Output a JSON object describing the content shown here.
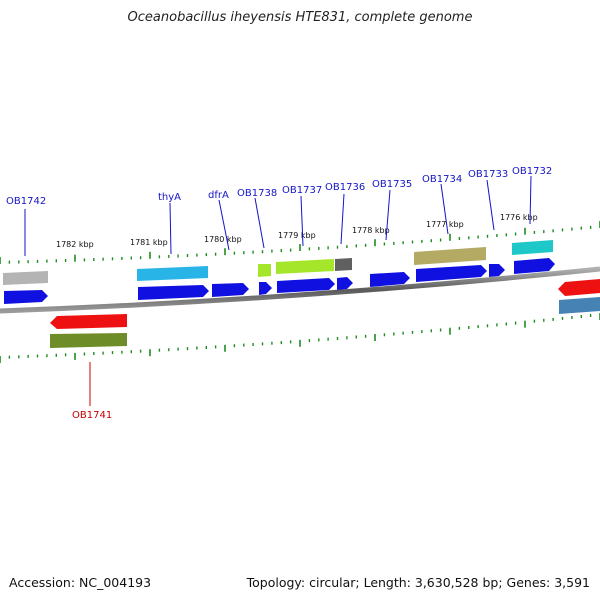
{
  "title": "Oceanobacillus iheyensis HTE831, complete genome",
  "footer": {
    "accession": "Accession: NC_004193",
    "stats": "Topology: circular; Length: 3,630,528 bp; Genes: 3,591"
  },
  "scale_labels": [
    "1782 kbp",
    "1781 kbp",
    "1780 kbp",
    "1779 kbp",
    "1778 kbp",
    "1777 kbp",
    "1776 kbp"
  ],
  "gene_labels": [
    "OB1742",
    "thyA",
    "dfrA",
    "OB1738",
    "OB1737",
    "OB1736",
    "OB1735",
    "OB1734",
    "OB1733",
    "OB1732",
    "OB1741"
  ],
  "colors": {
    "backbone": "#8a8a8a",
    "cds": "#1010e0",
    "highlight_cds": "#ee1111",
    "gene_label": "#1414c8",
    "highlight_label": "#c80000",
    "tick": "#1e8c1e"
  },
  "features": [
    {
      "name": "grey-feature",
      "color": "#b4b4b4"
    },
    {
      "name": "cyan-feature",
      "color": "#28b4e6"
    },
    {
      "name": "lime-feature",
      "color": "#a6e62a"
    },
    {
      "name": "lime-feature-2",
      "color": "#a6e62a"
    },
    {
      "name": "darkgrey-feature",
      "color": "#606060"
    },
    {
      "name": "olive-feature",
      "color": "#b4aa64"
    },
    {
      "name": "teal-feature",
      "color": "#1ec8c8"
    },
    {
      "name": "olive-green-feature",
      "color": "#6e8c28"
    },
    {
      "name": "steelblue-feature",
      "color": "#4682b4"
    }
  ]
}
